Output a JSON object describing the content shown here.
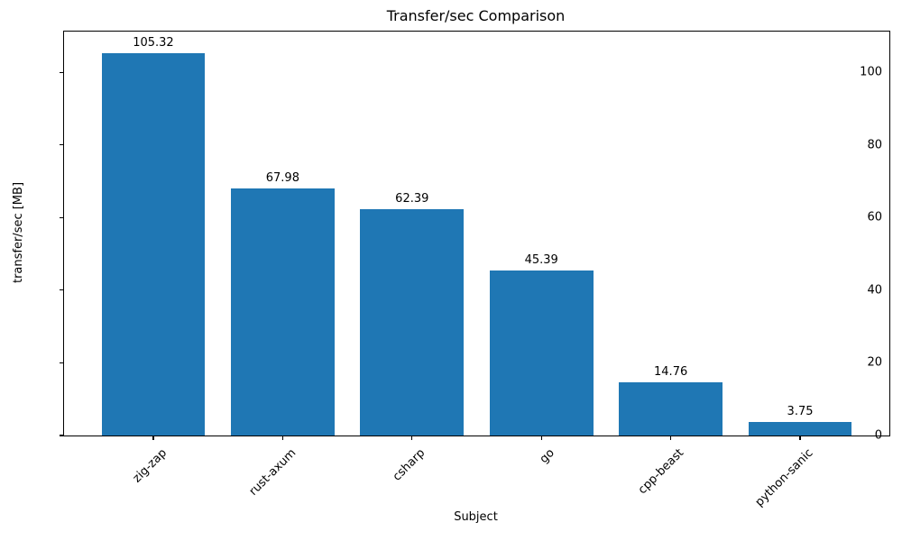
{
  "chart_data": {
    "type": "bar",
    "title": "Transfer/sec Comparison",
    "xlabel": "Subject",
    "ylabel": "transfer/sec [MB]",
    "categories": [
      "zig-zap",
      "rust-axum",
      "csharp",
      "go",
      "cpp-beast",
      "python-sanic"
    ],
    "values": [
      105.32,
      67.98,
      62.39,
      45.39,
      14.76,
      3.75
    ],
    "value_labels": [
      "105.32",
      "67.98",
      "62.39",
      "45.39",
      "14.76",
      "3.75"
    ],
    "ytick_values": [
      0,
      20,
      40,
      60,
      80,
      100
    ],
    "ytick_labels": [
      "0",
      "20",
      "40",
      "60",
      "80",
      "100"
    ],
    "ylim": [
      0,
      111.2
    ],
    "bar_color": "#1f77b4",
    "text_color": "#000000",
    "grid": false,
    "x_tick_rotation_deg": 45,
    "legend": false
  }
}
